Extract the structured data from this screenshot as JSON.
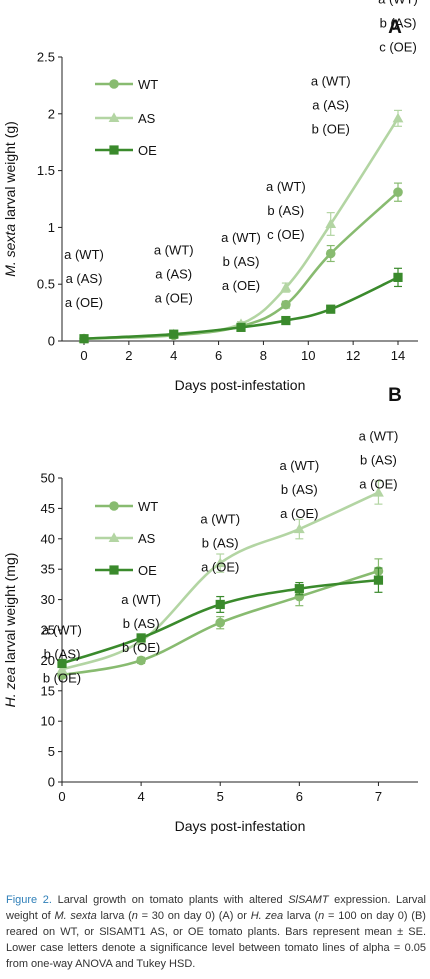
{
  "chart_data": [
    {
      "type": "line",
      "panel_letter": "A",
      "ylabel_species": "M. sexta",
      "ylabel_rest": " larval weight (g)",
      "xlabel": "Days post-infestation",
      "xlim": [
        0,
        14
      ],
      "ylim": [
        0,
        2.5
      ],
      "xticks": [
        "0",
        "2",
        "4",
        "6",
        "8",
        "10",
        "12",
        "14"
      ],
      "yticks": [
        "0",
        "0.5",
        "1",
        "1.5",
        "2",
        "2.5"
      ],
      "legend_placement": "top-left",
      "series": [
        {
          "name": "WT",
          "color": "#88bb70",
          "marker": "circle",
          "points": [
            {
              "x": 0,
              "y": 0.02,
              "err": 0.0
            },
            {
              "x": 4,
              "y": 0.05,
              "err": 0.0
            },
            {
              "x": 7,
              "y": 0.13,
              "err": 0.01
            },
            {
              "x": 9,
              "y": 0.32,
              "err": 0.03
            },
            {
              "x": 11,
              "y": 0.77,
              "err": 0.07
            },
            {
              "x": 14,
              "y": 1.31,
              "err": 0.08
            }
          ]
        },
        {
          "name": "AS",
          "color": "#b3d5a3",
          "marker": "triangle",
          "points": [
            {
              "x": 0,
              "y": 0.02,
              "err": 0.0
            },
            {
              "x": 4,
              "y": 0.06,
              "err": 0.0
            },
            {
              "x": 7,
              "y": 0.15,
              "err": 0.02
            },
            {
              "x": 9,
              "y": 0.47,
              "err": 0.04
            },
            {
              "x": 11,
              "y": 1.03,
              "err": 0.1
            },
            {
              "x": 14,
              "y": 1.96,
              "err": 0.07
            }
          ]
        },
        {
          "name": "OE",
          "color": "#3a8a2c",
          "marker": "square",
          "points": [
            {
              "x": 0,
              "y": 0.02,
              "err": 0.0
            },
            {
              "x": 4,
              "y": 0.06,
              "err": 0.0
            },
            {
              "x": 7,
              "y": 0.12,
              "err": 0.0
            },
            {
              "x": 9,
              "y": 0.18,
              "err": 0.01
            },
            {
              "x": 11,
              "y": 0.28,
              "err": 0.01
            },
            {
              "x": 14,
              "y": 0.56,
              "err": 0.08
            }
          ]
        }
      ],
      "annotations": [
        {
          "x": 0,
          "y": 0.72,
          "lines": [
            "a (WT)",
            "a (AS)",
            "a (OE)"
          ]
        },
        {
          "x": 4,
          "y": 0.76,
          "lines": [
            "a (WT)",
            "a (AS)",
            "a (OE)"
          ]
        },
        {
          "x": 7,
          "y": 0.87,
          "lines": [
            "a (WT)",
            "b (AS)",
            "a (OE)"
          ]
        },
        {
          "x": 9,
          "y": 1.32,
          "lines": [
            "a (WT)",
            "b (AS)",
            "c (OE)"
          ]
        },
        {
          "x": 11,
          "y": 2.25,
          "lines": [
            "a (WT)",
            "a (AS)",
            "b (OE)"
          ]
        },
        {
          "x": 14,
          "y": 2.97,
          "lines": [
            "a (WT)",
            "b (AS)",
            "c (OE)"
          ]
        }
      ]
    },
    {
      "type": "line",
      "panel_letter": "B",
      "ylabel_species": "H. zea",
      "ylabel_rest": " larval weight (mg)",
      "xlabel": "Days post-infestation",
      "x_categories": [
        "0",
        "4",
        "5",
        "6",
        "7"
      ],
      "ylim": [
        0,
        50
      ],
      "yticks": [
        "0",
        "5",
        "10",
        "15",
        "20",
        "25",
        "30",
        "35",
        "40",
        "45",
        "50"
      ],
      "legend_placement": "top-left",
      "series": [
        {
          "name": "WT",
          "color": "#88bb70",
          "marker": "circle",
          "points": [
            {
              "x": "0",
              "y": 17.6,
              "err": 0.5
            },
            {
              "x": "4",
              "y": 20.0,
              "err": 0.5
            },
            {
              "x": "5",
              "y": 26.2,
              "err": 1.0
            },
            {
              "x": "6",
              "y": 30.5,
              "err": 1.5
            },
            {
              "x": "7",
              "y": 34.7,
              "err": 2.0
            }
          ]
        },
        {
          "name": "AS",
          "color": "#b3d5a3",
          "marker": "triangle",
          "points": [
            {
              "x": "0",
              "y": 18.5,
              "err": 0.5
            },
            {
              "x": "4",
              "y": 23.2,
              "err": 0.5
            },
            {
              "x": "5",
              "y": 36.0,
              "err": 1.5
            },
            {
              "x": "6",
              "y": 41.6,
              "err": 1.6
            },
            {
              "x": "7",
              "y": 47.6,
              "err": 1.9
            }
          ]
        },
        {
          "name": "OE",
          "color": "#3a8a2c",
          "marker": "square",
          "points": [
            {
              "x": "0",
              "y": 19.5,
              "err": 0.4
            },
            {
              "x": "4",
              "y": 23.7,
              "err": 0.4
            },
            {
              "x": "5",
              "y": 29.2,
              "err": 1.3
            },
            {
              "x": "6",
              "y": 31.8,
              "err": 1.0
            },
            {
              "x": "7",
              "y": 33.2,
              "err": 2.0
            }
          ]
        }
      ],
      "annotations": [
        {
          "x": "0",
          "y": 24.3,
          "lines": [
            "a (WT)",
            "b (AS)",
            "b (OE)"
          ]
        },
        {
          "x": "4",
          "y": 29.3,
          "lines": [
            "a (WT)",
            "b (AS)",
            "b (OE)"
          ]
        },
        {
          "x": "5",
          "y": 42.5,
          "lines": [
            "a (WT)",
            "b (AS)",
            "a (OE)"
          ]
        },
        {
          "x": "6",
          "y": 51.3,
          "lines": [
            "a (WT)",
            "b (AS)",
            "a (OE)"
          ]
        },
        {
          "x": "7",
          "y": 56.2,
          "lines": [
            "a (WT)",
            "b (AS)",
            "a (OE)"
          ]
        }
      ]
    }
  ],
  "caption": {
    "label": "Figure 2.",
    "part1": " Larval growth on tomato plants with altered ",
    "gene_italic": "SlSAMT",
    "part2": " expression. Larval weight of ",
    "sp1_italic": "M. sexta",
    "part3": " larva (",
    "n1_italic": "n",
    "part4": " = 30 on day 0) (A) or ",
    "sp2_italic": "H. zea",
    "part5": " larva (",
    "n2_italic": "n",
    "part6": " = 100 on day 0) (B) reared on WT, or SlSAMT1 AS, or OE tomato plants. Bars represent mean ± SE. Lower case letters denote a significance level between tomato lines of alpha = 0.05 from one-way ANOVA and Tukey HSD."
  }
}
